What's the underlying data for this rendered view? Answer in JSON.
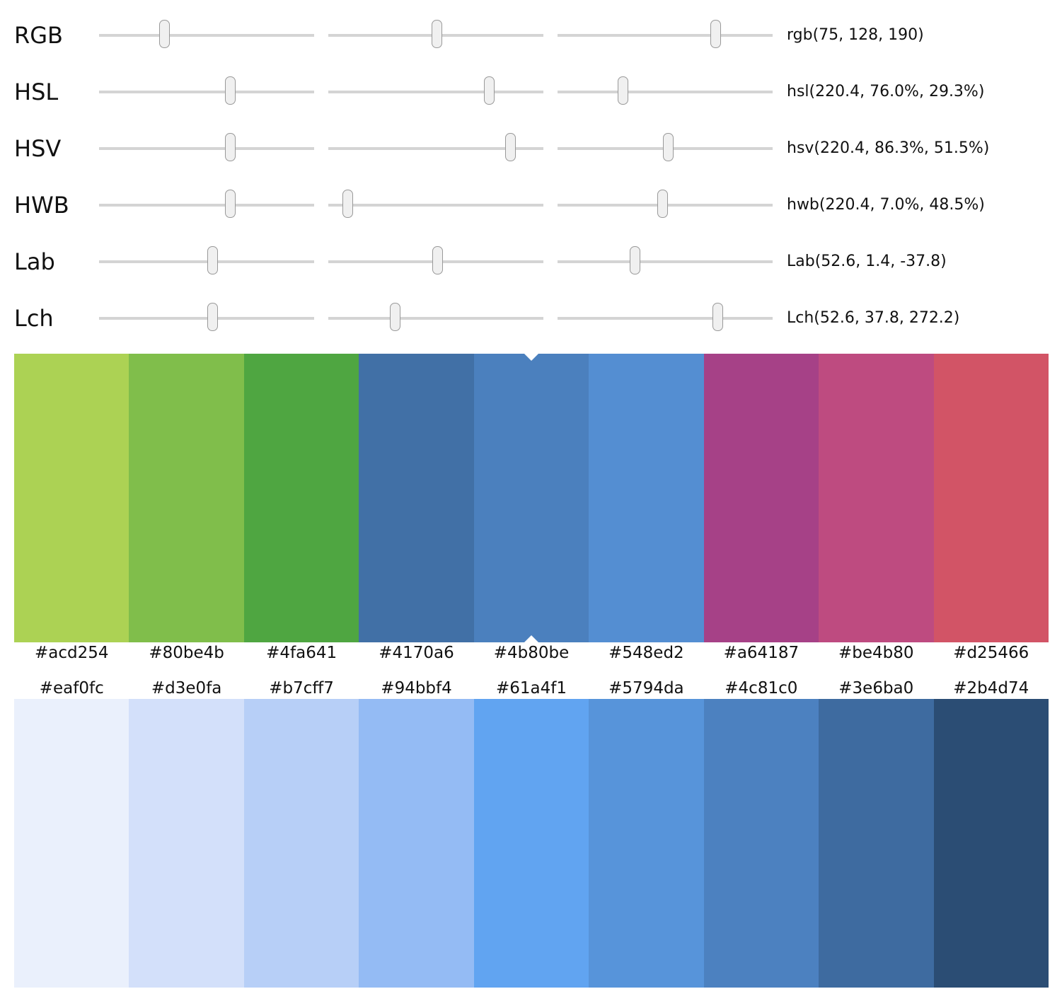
{
  "rows": [
    {
      "label": "RGB",
      "text": "rgb(75, 128, 190)",
      "values": [
        75,
        128,
        190
      ],
      "ranges": [
        [
          0,
          255
        ],
        [
          0,
          255
        ],
        [
          0,
          255
        ]
      ]
    },
    {
      "label": "HSL",
      "text": "hsl(220.4, 76.0%, 29.3%)",
      "values": [
        220.4,
        76.0,
        29.3
      ],
      "ranges": [
        [
          0,
          360
        ],
        [
          0,
          100
        ],
        [
          0,
          100
        ]
      ]
    },
    {
      "label": "HSV",
      "text": "hsv(220.4, 86.3%, 51.5%)",
      "values": [
        220.4,
        86.3,
        51.5
      ],
      "ranges": [
        [
          0,
          360
        ],
        [
          0,
          100
        ],
        [
          0,
          100
        ]
      ]
    },
    {
      "label": "HWB",
      "text": "hwb(220.4, 7.0%, 48.5%)",
      "values": [
        220.4,
        7.0,
        48.5
      ],
      "ranges": [
        [
          0,
          360
        ],
        [
          0,
          100
        ],
        [
          0,
          100
        ]
      ]
    },
    {
      "label": "Lab",
      "text": "Lab(52.6, 1.4, -37.8)",
      "values": [
        52.6,
        1.4,
        -37.8
      ],
      "ranges": [
        [
          0,
          100
        ],
        [
          -128,
          128
        ],
        [
          -128,
          128
        ]
      ]
    },
    {
      "label": "Lch",
      "text": "Lch(52.6, 37.8, 272.2)",
      "values": [
        52.6,
        37.8,
        272.2
      ],
      "ranges": [
        [
          0,
          100
        ],
        [
          0,
          126
        ],
        [
          0,
          360
        ]
      ]
    }
  ],
  "harmony": [
    "#acd254",
    "#80be4b",
    "#4fa641",
    "#4170a6",
    "#4b80be",
    "#548ed2",
    "#a64187",
    "#be4b80",
    "#d25466"
  ],
  "shades": [
    "#eaf0fc",
    "#d3e0fa",
    "#b7cff7",
    "#94bbf4",
    "#61a4f1",
    "#5794da",
    "#4c81c0",
    "#3e6ba0",
    "#2b4d74"
  ],
  "selected_index": 4
}
